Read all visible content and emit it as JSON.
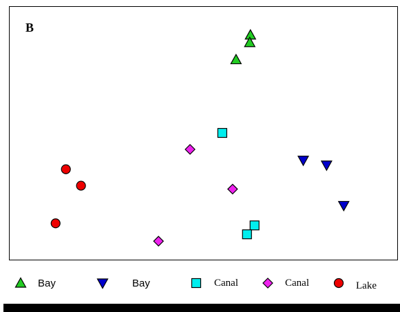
{
  "chart_data": {
    "type": "scatter",
    "title": "",
    "panel_label": "B",
    "xlabel": "",
    "ylabel": "",
    "xlim": [
      0,
      565
    ],
    "ylim": [
      0,
      369
    ],
    "grid": false,
    "legend_position": "bottom",
    "series": [
      {
        "name": "Bay",
        "marker": "triangle-up",
        "color": "#22cc22",
        "points": [
          [
            351,
            328
          ],
          [
            350,
            317
          ],
          [
            330,
            292
          ]
        ]
      },
      {
        "name": "Bay",
        "marker": "triangle-down",
        "color": "#0000cc",
        "points": [
          [
            428,
            145
          ],
          [
            462,
            138
          ],
          [
            487,
            79
          ]
        ]
      },
      {
        "name": "Canal",
        "marker": "square",
        "color": "#00eeee",
        "points": [
          [
            310,
            185
          ],
          [
            357,
            50
          ],
          [
            346,
            37
          ]
        ]
      },
      {
        "name": "Canal",
        "marker": "diamond",
        "color": "#ee22ee",
        "points": [
          [
            263,
            161
          ],
          [
            325,
            103
          ],
          [
            217,
            27
          ]
        ]
      },
      {
        "name": "Lake",
        "marker": "circle",
        "color": "#ee0000",
        "points": [
          [
            82,
            132
          ],
          [
            104,
            108
          ],
          [
            67,
            53
          ]
        ]
      }
    ]
  }
}
